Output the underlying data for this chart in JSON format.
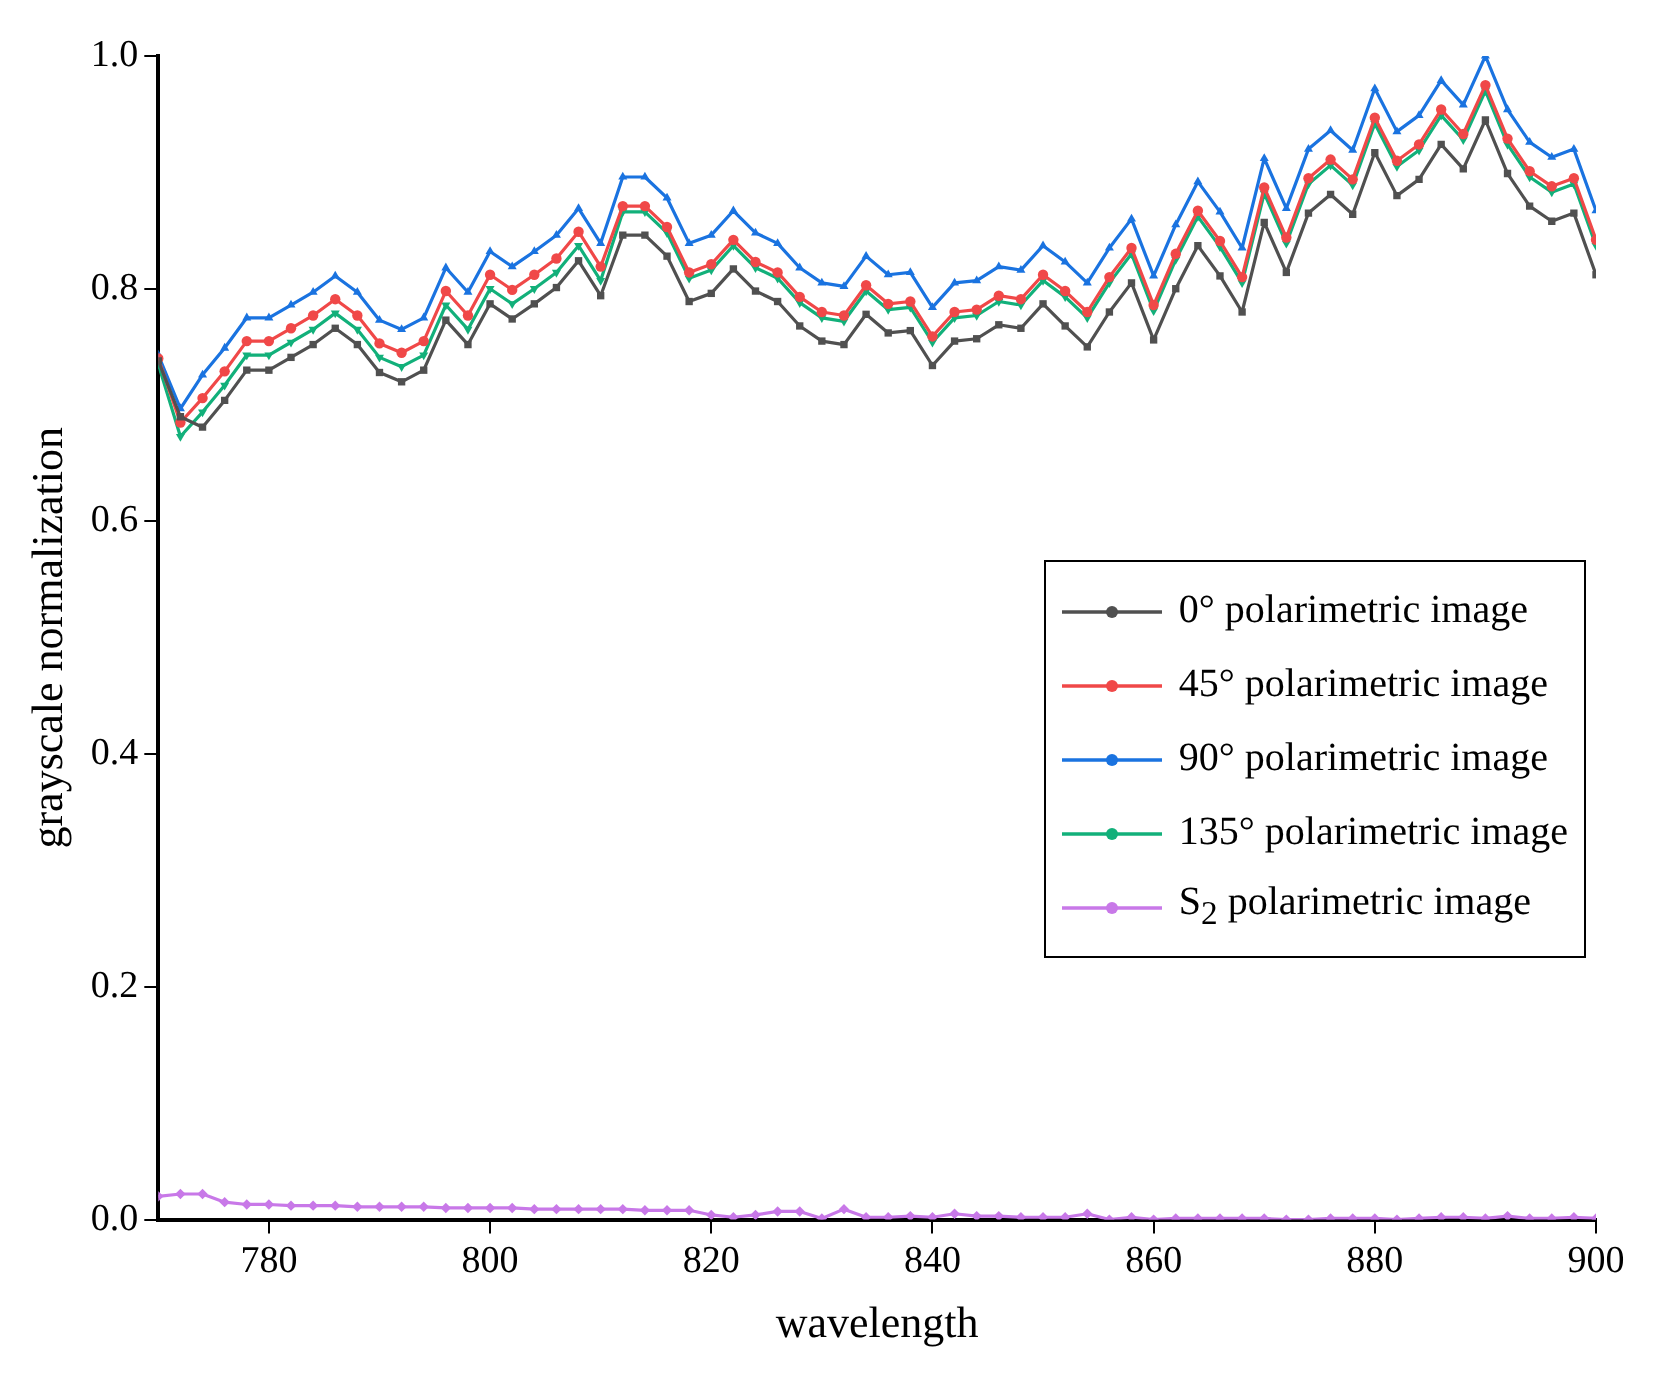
{
  "chart_data": {
    "type": "line",
    "xlabel": "wavelength",
    "ylabel": "grayscale normalization",
    "x": [
      770,
      772,
      774,
      776,
      778,
      780,
      782,
      784,
      786,
      788,
      790,
      792,
      794,
      796,
      798,
      800,
      802,
      804,
      806,
      808,
      810,
      812,
      814,
      816,
      818,
      820,
      822,
      824,
      826,
      828,
      830,
      832,
      834,
      836,
      838,
      840,
      842,
      844,
      846,
      848,
      850,
      852,
      854,
      856,
      858,
      860,
      862,
      864,
      866,
      868,
      870,
      872,
      874,
      876,
      878,
      880,
      882,
      884,
      886,
      888,
      890,
      892,
      894,
      896,
      898,
      900
    ],
    "series": [
      {
        "name": "0° polarimetric image",
        "color": "#505050",
        "marker": "square",
        "values": [
          0.738,
          0.69,
          0.681,
          0.704,
          0.73,
          0.73,
          0.741,
          0.752,
          0.766,
          0.752,
          0.728,
          0.72,
          0.73,
          0.773,
          0.752,
          0.787,
          0.774,
          0.787,
          0.801,
          0.824,
          0.794,
          0.846,
          0.846,
          0.828,
          0.789,
          0.796,
          0.817,
          0.798,
          0.789,
          0.768,
          0.755,
          0.752,
          0.778,
          0.762,
          0.764,
          0.734,
          0.755,
          0.757,
          0.769,
          0.766,
          0.787,
          0.768,
          0.75,
          0.78,
          0.805,
          0.756,
          0.8,
          0.837,
          0.811,
          0.78,
          0.857,
          0.814,
          0.865,
          0.881,
          0.864,
          0.917,
          0.88,
          0.894,
          0.924,
          0.903,
          0.945,
          0.899,
          0.871,
          0.858,
          0.865,
          0.812
        ]
      },
      {
        "name": "45° polarimetric image",
        "color": "#f04848",
        "marker": "circle",
        "values": [
          0.74,
          0.685,
          0.706,
          0.729,
          0.755,
          0.755,
          0.766,
          0.777,
          0.791,
          0.777,
          0.753,
          0.745,
          0.755,
          0.798,
          0.777,
          0.812,
          0.799,
          0.812,
          0.826,
          0.849,
          0.819,
          0.871,
          0.871,
          0.853,
          0.814,
          0.821,
          0.842,
          0.823,
          0.814,
          0.793,
          0.78,
          0.777,
          0.803,
          0.787,
          0.789,
          0.759,
          0.78,
          0.782,
          0.794,
          0.791,
          0.812,
          0.798,
          0.78,
          0.81,
          0.835,
          0.786,
          0.83,
          0.867,
          0.841,
          0.81,
          0.887,
          0.844,
          0.895,
          0.911,
          0.894,
          0.947,
          0.91,
          0.924,
          0.954,
          0.933,
          0.975,
          0.929,
          0.901,
          0.888,
          0.895,
          0.842
        ]
      },
      {
        "name": "90° polarimetric image",
        "color": "#1a73e0",
        "marker": "triangle",
        "values": [
          0.743,
          0.697,
          0.726,
          0.749,
          0.775,
          0.775,
          0.786,
          0.797,
          0.811,
          0.797,
          0.773,
          0.765,
          0.775,
          0.818,
          0.797,
          0.832,
          0.819,
          0.832,
          0.846,
          0.869,
          0.839,
          0.896,
          0.896,
          0.878,
          0.839,
          0.846,
          0.867,
          0.848,
          0.839,
          0.818,
          0.805,
          0.802,
          0.828,
          0.812,
          0.814,
          0.784,
          0.805,
          0.807,
          0.819,
          0.816,
          0.837,
          0.823,
          0.805,
          0.835,
          0.86,
          0.811,
          0.855,
          0.892,
          0.866,
          0.835,
          0.912,
          0.869,
          0.92,
          0.936,
          0.919,
          0.972,
          0.935,
          0.949,
          0.979,
          0.958,
          1.0,
          0.954,
          0.926,
          0.913,
          0.92,
          0.867
        ]
      },
      {
        "name": "135° polarimetric image",
        "color": "#12b07a",
        "marker": "triangle-down",
        "values": [
          0.735,
          0.673,
          0.694,
          0.717,
          0.743,
          0.743,
          0.754,
          0.765,
          0.779,
          0.765,
          0.741,
          0.733,
          0.743,
          0.786,
          0.765,
          0.8,
          0.787,
          0.8,
          0.814,
          0.837,
          0.807,
          0.866,
          0.866,
          0.848,
          0.809,
          0.816,
          0.837,
          0.818,
          0.809,
          0.788,
          0.775,
          0.772,
          0.798,
          0.782,
          0.784,
          0.754,
          0.775,
          0.777,
          0.789,
          0.786,
          0.807,
          0.793,
          0.775,
          0.805,
          0.83,
          0.781,
          0.825,
          0.862,
          0.836,
          0.805,
          0.882,
          0.839,
          0.89,
          0.906,
          0.889,
          0.942,
          0.905,
          0.919,
          0.949,
          0.928,
          0.97,
          0.924,
          0.896,
          0.883,
          0.89,
          0.837
        ]
      },
      {
        "name": "S$_{2}$ polarimetric image",
        "color": "#c878e8",
        "marker": "diamond",
        "values": [
          0.02,
          0.022,
          0.022,
          0.015,
          0.013,
          0.013,
          0.012,
          0.012,
          0.012,
          0.011,
          0.011,
          0.011,
          0.011,
          0.01,
          0.01,
          0.01,
          0.01,
          0.009,
          0.009,
          0.009,
          0.009,
          0.009,
          0.008,
          0.008,
          0.008,
          0.004,
          0.002,
          0.004,
          0.007,
          0.007,
          0.001,
          0.009,
          0.002,
          0.002,
          0.003,
          0.002,
          0.005,
          0.003,
          0.003,
          0.002,
          0.002,
          0.002,
          0.005,
          0,
          0.002,
          0,
          0.001,
          0.001,
          0.001,
          0.001,
          0.001,
          0,
          0,
          0.001,
          0.001,
          0.001,
          0,
          0.001,
          0.002,
          0.002,
          0.001,
          0.003,
          0.001,
          0.001,
          0.002,
          0.001
        ]
      }
    ],
    "xlim": [
      770,
      900
    ],
    "xticks": [
      780,
      800,
      820,
      840,
      860,
      880,
      900
    ],
    "ylim": [
      0,
      1.0
    ],
    "yticks": [
      {
        "value": 0,
        "label": "0.0"
      },
      {
        "value": 0.2,
        "label": "0.2"
      },
      {
        "value": 0.4,
        "label": "0.4"
      },
      {
        "value": 0.6,
        "label": "0.6"
      },
      {
        "value": 0.8,
        "label": "0.8"
      },
      {
        "value": 1.0,
        "label": "1.0"
      }
    ],
    "grid": false,
    "legend": "right",
    "line_style": "solid"
  }
}
